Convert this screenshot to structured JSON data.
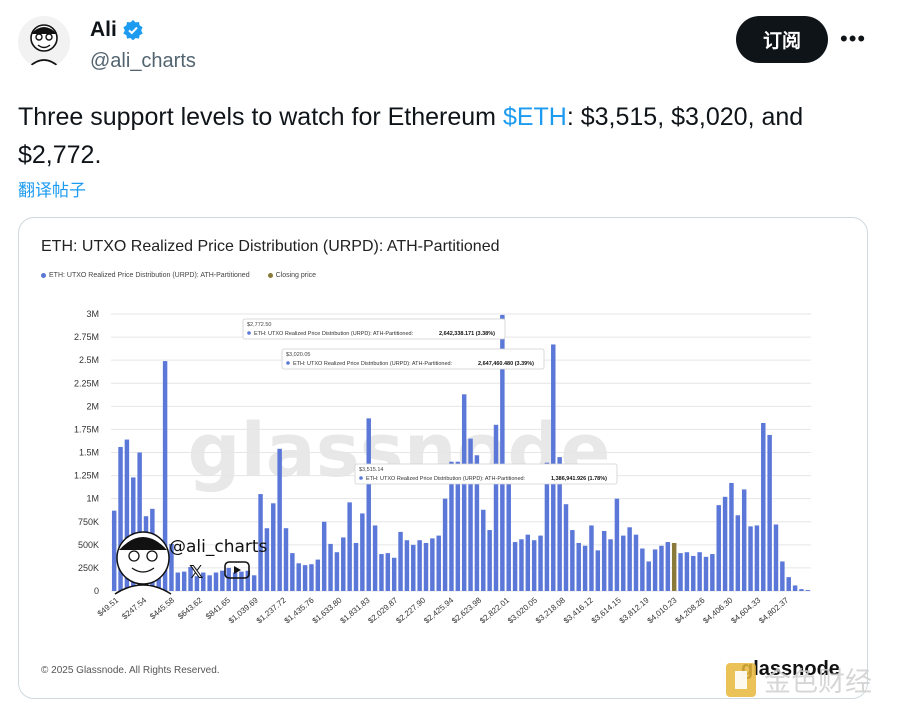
{
  "user": {
    "name": "Ali",
    "handle": "@ali_charts"
  },
  "actions": {
    "follow_label": "订阅",
    "more_label": "•••"
  },
  "tweet": {
    "text_before": "Three support levels to watch for Ethereum ",
    "cashtag": "$ETH",
    "text_after": ": $3,515, $3,020, and $2,772.",
    "translate_label": "翻译帖子"
  },
  "card": {
    "copyright": "© 2025 Glassnode. All Rights Reserved.",
    "logo_text": "glassnode",
    "watermark_text": "glassnode",
    "overlay_handle": "@ali_charts",
    "bottom_watermark": "金色财经"
  },
  "colors": {
    "bar": "#5b77d8",
    "bar_closing": "#8a7a3a",
    "accent": "#1d9bf0"
  },
  "chart_data": {
    "type": "bar",
    "title": "ETH: UTXO Realized Price Distribution (URPD): ATH-Partitioned",
    "legend": [
      {
        "name": "ETH: UTXO Realized Price Distribution (URPD): ATH-Partitioned",
        "color": "#5b77d8"
      },
      {
        "name": "Closing price",
        "color": "#8a7a3a"
      }
    ],
    "yticks": [
      "3M",
      "2.75M",
      "2.5M",
      "2.25M",
      "2M",
      "1.75M",
      "1.5M",
      "1.25M",
      "1M",
      "750K",
      "500K",
      "250K",
      "0"
    ],
    "ylim": [
      0,
      3000000
    ],
    "xticks": [
      "$49.51",
      "$247.54",
      "$445.58",
      "$643.62",
      "$841.65",
      "$1,039.69",
      "$1,237.72",
      "$1,435.76",
      "$1,633.80",
      "$1,831.83",
      "$2,029.87",
      "$2,227.90",
      "$2,425.94",
      "$2,623.98",
      "$2,822.01",
      "$3,020.05",
      "$3,218.08",
      "$3,416.12",
      "$3,614.15",
      "$3,812.19",
      "$4,010.23",
      "$4,208.26",
      "$4,406.30",
      "$4,604.33",
      "$4,802.37"
    ],
    "values": [
      870000,
      1560000,
      1640000,
      1230000,
      1500000,
      810000,
      890000,
      500000,
      2490000,
      510000,
      200000,
      210000,
      260000,
      160000,
      200000,
      170000,
      200000,
      220000,
      250000,
      200000,
      210000,
      220000,
      170000,
      1050000,
      680000,
      950000,
      1540000,
      680000,
      410000,
      300000,
      280000,
      290000,
      340000,
      750000,
      510000,
      420000,
      580000,
      960000,
      520000,
      840000,
      1870000,
      710000,
      400000,
      410000,
      360000,
      640000,
      550000,
      500000,
      550000,
      520000,
      570000,
      600000,
      1000000,
      1400000,
      1400000,
      2130000,
      1650000,
      1470000,
      880000,
      660000,
      1800000,
      2990000,
      1250000,
      530000,
      560000,
      610000,
      550000,
      600000,
      1390000,
      2670000,
      1450000,
      940000,
      660000,
      520000,
      490000,
      710000,
      440000,
      650000,
      560000,
      1000000,
      600000,
      690000,
      610000,
      460000,
      320000,
      450000,
      490000,
      530000,
      520000,
      410000,
      420000,
      380000,
      420000,
      370000,
      400000,
      930000,
      1020000,
      1170000,
      820000,
      1100000,
      700000,
      710000,
      1820000,
      1690000,
      720000,
      320000,
      150000,
      60000,
      20000,
      10000
    ],
    "closing_index": 88,
    "tooltips": [
      {
        "price": "$2,772.50",
        "label": "ETH: UTXO Realized Price Distribution (URPD): ATH-Partitioned:",
        "value": "2,642,338.171 (3.38%)"
      },
      {
        "price": "$3,020.05",
        "label": "ETH: UTXO Realized Price Distribution (URPD): ATH-Partitioned:",
        "value": "2,647,460.480 (3.39%)"
      },
      {
        "price": "$3,515.14",
        "label": "ETH: UTXO Realized Price Distribution (URPD): ATH-Partitioned:",
        "value": "1,386,941.926 (1.78%)"
      }
    ]
  }
}
